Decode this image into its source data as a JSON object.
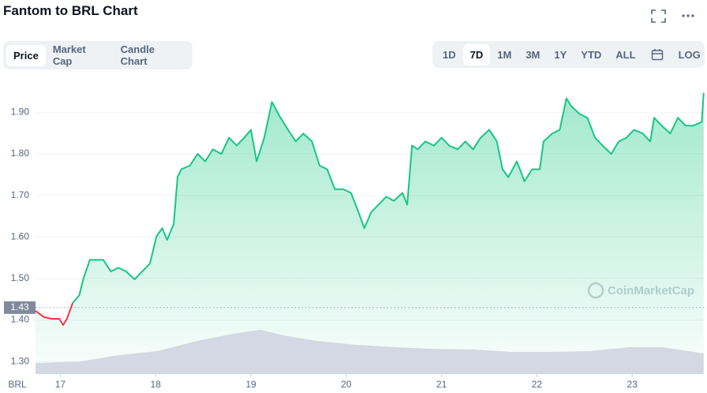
{
  "header": {
    "title": "Fantom to BRL Chart"
  },
  "tabs": [
    "Price",
    "Market Cap",
    "Candle Chart"
  ],
  "active_tab": 0,
  "ranges": [
    "1D",
    "7D",
    "1M",
    "3M",
    "1Y",
    "YTD",
    "ALL"
  ],
  "active_range": 1,
  "log_button": "LOG",
  "chart_data": {
    "type": "line",
    "currency": "BRL",
    "watermark": "CoinMarketCap",
    "x": [
      16.74,
      16.83,
      16.91,
      16.99,
      17.03,
      17.07,
      17.13,
      17.2,
      17.24,
      17.31,
      17.36,
      17.45,
      17.53,
      17.61,
      17.69,
      17.78,
      17.86,
      17.94,
      18.01,
      18.07,
      18.12,
      18.19,
      18.23,
      18.27,
      18.36,
      18.44,
      18.52,
      18.6,
      18.69,
      18.77,
      18.85,
      18.93,
      19.0,
      19.06,
      19.14,
      19.22,
      19.31,
      19.39,
      19.47,
      19.55,
      19.64,
      19.72,
      19.8,
      19.88,
      19.97,
      20.05,
      20.13,
      20.19,
      20.26,
      20.34,
      20.42,
      20.5,
      20.59,
      20.64,
      20.69,
      20.75,
      20.83,
      20.92,
      21.0,
      21.08,
      21.17,
      21.25,
      21.33,
      21.41,
      21.5,
      21.58,
      21.64,
      21.7,
      21.79,
      21.87,
      21.95,
      22.03,
      22.07,
      22.16,
      22.24,
      22.31,
      22.36,
      22.45,
      22.53,
      22.61,
      22.69,
      22.78,
      22.86,
      22.94,
      23.02,
      23.11,
      23.19,
      23.23,
      23.31,
      23.4,
      23.48,
      23.56,
      23.64,
      23.73,
      23.75
    ],
    "series": [
      {
        "color": "#16c784",
        "below_color": "#ea3943",
        "values": [
          1.422,
          1.407,
          1.403,
          1.403,
          1.388,
          1.403,
          1.441,
          1.46,
          1.498,
          1.545,
          1.545,
          1.545,
          1.517,
          1.526,
          1.517,
          1.498,
          1.517,
          1.536,
          1.602,
          1.621,
          1.593,
          1.631,
          1.744,
          1.763,
          1.772,
          1.8,
          1.782,
          1.811,
          1.8,
          1.839,
          1.82,
          1.839,
          1.858,
          1.782,
          1.839,
          1.925,
          1.887,
          1.858,
          1.83,
          1.849,
          1.83,
          1.772,
          1.763,
          1.715,
          1.715,
          1.706,
          1.659,
          1.621,
          1.659,
          1.678,
          1.697,
          1.687,
          1.706,
          1.678,
          1.82,
          1.811,
          1.83,
          1.82,
          1.839,
          1.82,
          1.811,
          1.83,
          1.811,
          1.839,
          1.858,
          1.83,
          1.763,
          1.744,
          1.782,
          1.734,
          1.763,
          1.763,
          1.83,
          1.849,
          1.858,
          1.934,
          1.915,
          1.896,
          1.887,
          1.839,
          1.82,
          1.8,
          1.83,
          1.839,
          1.858,
          1.849,
          1.83,
          1.887,
          1.868,
          1.849,
          1.887,
          1.868,
          1.868,
          1.877,
          1.947
        ]
      }
    ],
    "reference_value": 1.43,
    "volume": {
      "color": "#d3d8e2",
      "x": [
        16.74,
        17.2,
        17.61,
        18.02,
        18.44,
        18.85,
        19.1,
        19.35,
        19.68,
        20.09,
        20.5,
        20.92,
        21.33,
        21.74,
        22.16,
        22.57,
        22.98,
        23.31,
        23.75
      ],
      "values": [
        3.7,
        4.2,
        6.3,
        7.7,
        11.1,
        13.7,
        14.8,
        12.9,
        11.1,
        9.8,
        9.0,
        8.4,
        8.2,
        7.4,
        7.4,
        7.7,
        9.0,
        9.0,
        6.9
      ],
      "ylim": [
        0,
        100
      ]
    },
    "xlim": [
      16.74,
      23.76
    ],
    "xticks": [
      17,
      18,
      19,
      20,
      21,
      22,
      23
    ],
    "ylim": [
      1.27,
      1.99
    ],
    "yticks": [
      {
        "value": 1.3,
        "label": "1.30"
      },
      {
        "value": 1.4,
        "label": "1.40"
      },
      {
        "value": 1.5,
        "label": "1.50"
      },
      {
        "value": 1.6,
        "label": "1.60"
      },
      {
        "value": 1.7,
        "label": "1.70"
      },
      {
        "value": 1.8,
        "label": "1.80"
      },
      {
        "value": 1.9,
        "label": "1.90"
      }
    ],
    "grid": true
  }
}
